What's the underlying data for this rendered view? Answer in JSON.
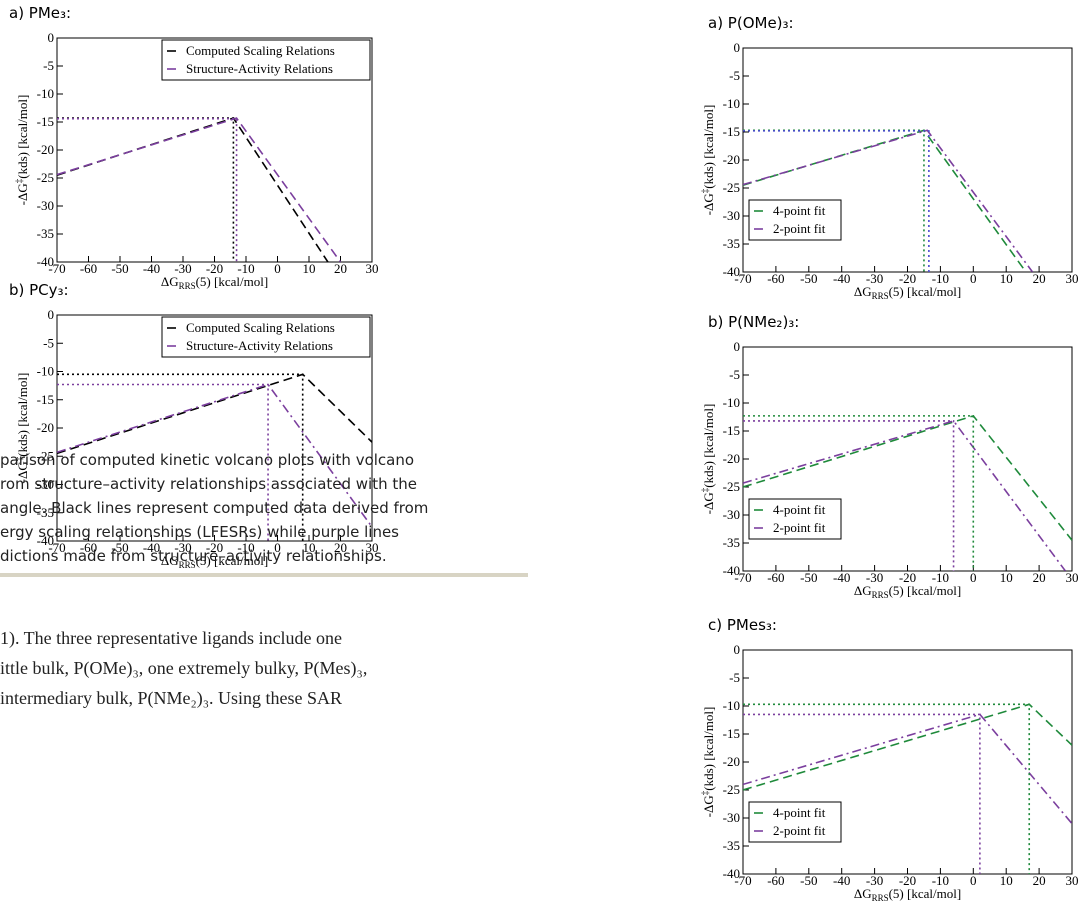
{
  "chart_data": [
    {
      "type": "line",
      "title": "a) PMe₃:",
      "x_label": [
        "ΔG",
        "RRS",
        "(5) [kcal/mol]"
      ],
      "y_label": [
        "-ΔG",
        "‡",
        "(kds) [kcal/mol]"
      ],
      "xlim": [
        -70,
        30
      ],
      "xticks": [
        -70,
        -60,
        -50,
        -40,
        -30,
        -20,
        -10,
        0,
        10,
        20,
        30
      ],
      "ylim": [
        -40,
        0
      ],
      "yticks": [
        0,
        -5,
        -10,
        -15,
        -20,
        -25,
        -30,
        -35,
        -40
      ],
      "legend": "upper right",
      "series": [
        {
          "name": "Computed Scaling Relations",
          "color": "#000000",
          "style": "dashed",
          "x": [
            -70,
            -14,
            16
          ],
          "values": [
            -24.5,
            -14.3,
            -40
          ]
        },
        {
          "name": "Structure-Activity Relations",
          "color": "#7b3f9e",
          "style": "dashed",
          "x": [
            -70,
            -13,
            20
          ],
          "values": [
            -24.4,
            -14.3,
            -40
          ]
        },
        {
          "color": "#000000",
          "style": "dotted",
          "x": [
            -70,
            -14,
            -14
          ],
          "values": [
            -14.3,
            -14.3,
            -40
          ]
        },
        {
          "color": "#7b3f9e",
          "style": "dotted",
          "x": [
            -70,
            -13,
            -13
          ],
          "values": [
            -14.4,
            -14.4,
            -40
          ]
        }
      ]
    },
    {
      "type": "line",
      "title": "b) PCy₃:",
      "x_label": [
        "ΔG",
        "RRS",
        "(5) [kcal/mol]"
      ],
      "y_label": [
        "-ΔG",
        "‡",
        "(kds) [kcal/mol]"
      ],
      "xlim": [
        -70,
        30
      ],
      "xticks": [
        -70,
        -60,
        -50,
        -40,
        -30,
        -20,
        -10,
        0,
        10,
        20,
        30
      ],
      "ylim": [
        -40,
        0
      ],
      "yticks": [
        0,
        -5,
        -10,
        -15,
        -20,
        -25,
        -30,
        -35,
        -40
      ],
      "legend": "upper right",
      "series": [
        {
          "name": "Computed Scaling Relations",
          "color": "#000000",
          "style": "dashed",
          "x": [
            -70,
            8,
            30
          ],
          "values": [
            -24.5,
            -10.5,
            -22.5
          ]
        },
        {
          "name": "Structure-Activity Relations",
          "color": "#7b3f9e",
          "style": "dashdot",
          "x": [
            -70,
            -3,
            30
          ],
          "values": [
            -24.3,
            -12.3,
            -37.5
          ]
        },
        {
          "color": "#000000",
          "style": "dotted",
          "x": [
            -70,
            8,
            8
          ],
          "values": [
            -10.5,
            -10.5,
            -40
          ]
        },
        {
          "color": "#7b3f9e",
          "style": "dotted",
          "x": [
            -70,
            -3,
            -3
          ],
          "values": [
            -12.3,
            -12.3,
            -40
          ]
        }
      ]
    },
    {
      "type": "line",
      "title": "a) P(OMe)₃:",
      "x_label": [
        "ΔG",
        "RRS",
        "(5) [kcal/mol]"
      ],
      "y_label": [
        "-ΔG",
        "‡",
        "(kds) [kcal/mol]"
      ],
      "xlim": [
        -70,
        30
      ],
      "xticks": [
        -70,
        -60,
        -50,
        -40,
        -30,
        -20,
        -10,
        0,
        10,
        20,
        30
      ],
      "ylim": [
        -40,
        0
      ],
      "yticks": [
        0,
        -5,
        -10,
        -15,
        -20,
        -25,
        -30,
        -35,
        -40
      ],
      "legend": "lower left",
      "series": [
        {
          "name": "4-point fit",
          "color": "#1f8a3b",
          "style": "dashed",
          "x": [
            -70,
            -15,
            16
          ],
          "values": [
            -24.5,
            -14.7,
            -40
          ]
        },
        {
          "name": "2-point fit",
          "color": "#7b3f9e",
          "style": "dashdot",
          "x": [
            -70,
            -14,
            18
          ],
          "values": [
            -24.4,
            -14.7,
            -40
          ]
        },
        {
          "color": "#1f8a3b",
          "style": "dotted",
          "x": [
            -70,
            -15,
            -15
          ],
          "values": [
            -14.7,
            -14.7,
            -40
          ]
        },
        {
          "color": "#4a4ad0",
          "style": "dotted",
          "x": [
            -70,
            -13.5,
            -13.5
          ],
          "values": [
            -14.8,
            -14.8,
            -40
          ]
        }
      ]
    },
    {
      "type": "line",
      "title": "b) P(NMe₂)₃:",
      "x_label": [
        "ΔG",
        "RRS",
        "(5) [kcal/mol]"
      ],
      "y_label": [
        "-ΔG",
        "‡",
        "(kds) [kcal/mol]"
      ],
      "xlim": [
        -70,
        30
      ],
      "xticks": [
        -70,
        -60,
        -50,
        -40,
        -30,
        -20,
        -10,
        0,
        10,
        20,
        30
      ],
      "ylim": [
        -40,
        0
      ],
      "yticks": [
        0,
        -5,
        -10,
        -15,
        -20,
        -25,
        -30,
        -35,
        -40
      ],
      "legend": "lower left",
      "series": [
        {
          "name": "4-point fit",
          "color": "#1f8a3b",
          "style": "dashed",
          "x": [
            -70,
            0,
            30
          ],
          "values": [
            -25,
            -12.3,
            -34.5
          ]
        },
        {
          "name": "2-point fit",
          "color": "#7b3f9e",
          "style": "dashdot",
          "x": [
            -70,
            -6,
            28
          ],
          "values": [
            -24.3,
            -13.2,
            -40
          ]
        },
        {
          "color": "#1f8a3b",
          "style": "dotted",
          "x": [
            -70,
            0,
            0
          ],
          "values": [
            -12.3,
            -12.3,
            -40
          ]
        },
        {
          "color": "#7b3f9e",
          "style": "dotted",
          "x": [
            -70,
            -6,
            -6
          ],
          "values": [
            -13.2,
            -13.2,
            -40
          ]
        }
      ]
    },
    {
      "type": "line",
      "title": "c) PMes₃:",
      "x_label": [
        "ΔG",
        "RRS",
        "(5) [kcal/mol]"
      ],
      "y_label": [
        "-ΔG",
        "‡",
        "(kds) [kcal/mol]"
      ],
      "xlim": [
        -70,
        30
      ],
      "xticks": [
        -70,
        -60,
        -50,
        -40,
        -30,
        -20,
        -10,
        0,
        10,
        20,
        30
      ],
      "ylim": [
        -40,
        0
      ],
      "yticks": [
        0,
        -5,
        -10,
        -15,
        -20,
        -25,
        -30,
        -35,
        -40
      ],
      "legend": "lower left",
      "series": [
        {
          "name": "4-point fit",
          "color": "#1f8a3b",
          "style": "dashed",
          "x": [
            -70,
            17,
            30
          ],
          "values": [
            -25,
            -9.7,
            -17
          ]
        },
        {
          "name": "2-point fit",
          "color": "#7b3f9e",
          "style": "dashdot",
          "x": [
            -70,
            2,
            30
          ],
          "values": [
            -24,
            -11.5,
            -31
          ]
        },
        {
          "color": "#1f8a3b",
          "style": "dotted",
          "x": [
            -70,
            17,
            17
          ],
          "values": [
            -9.7,
            -9.7,
            -40
          ]
        },
        {
          "color": "#7b3f9e",
          "style": "dotted",
          "x": [
            -70,
            2,
            2
          ],
          "values": [
            -11.5,
            -11.5,
            -40
          ]
        }
      ]
    }
  ],
  "caption": [
    "parison of computed kinetic volcano plots with volcano",
    "rom structure–activity relationships associated with the",
    "angle. Black lines represent computed data derived from",
    "ergy scaling relationships (LFESRs) while purple lines",
    "dictions made from structure–activity relationships."
  ],
  "body": [
    "1). The three representative ligands include one",
    "ittle bulk, P(OMe)₃, one extremely bulky, P(Mes)₃,",
    "intermediary bulk, P(NMe₂)₃. Using these SAR"
  ]
}
